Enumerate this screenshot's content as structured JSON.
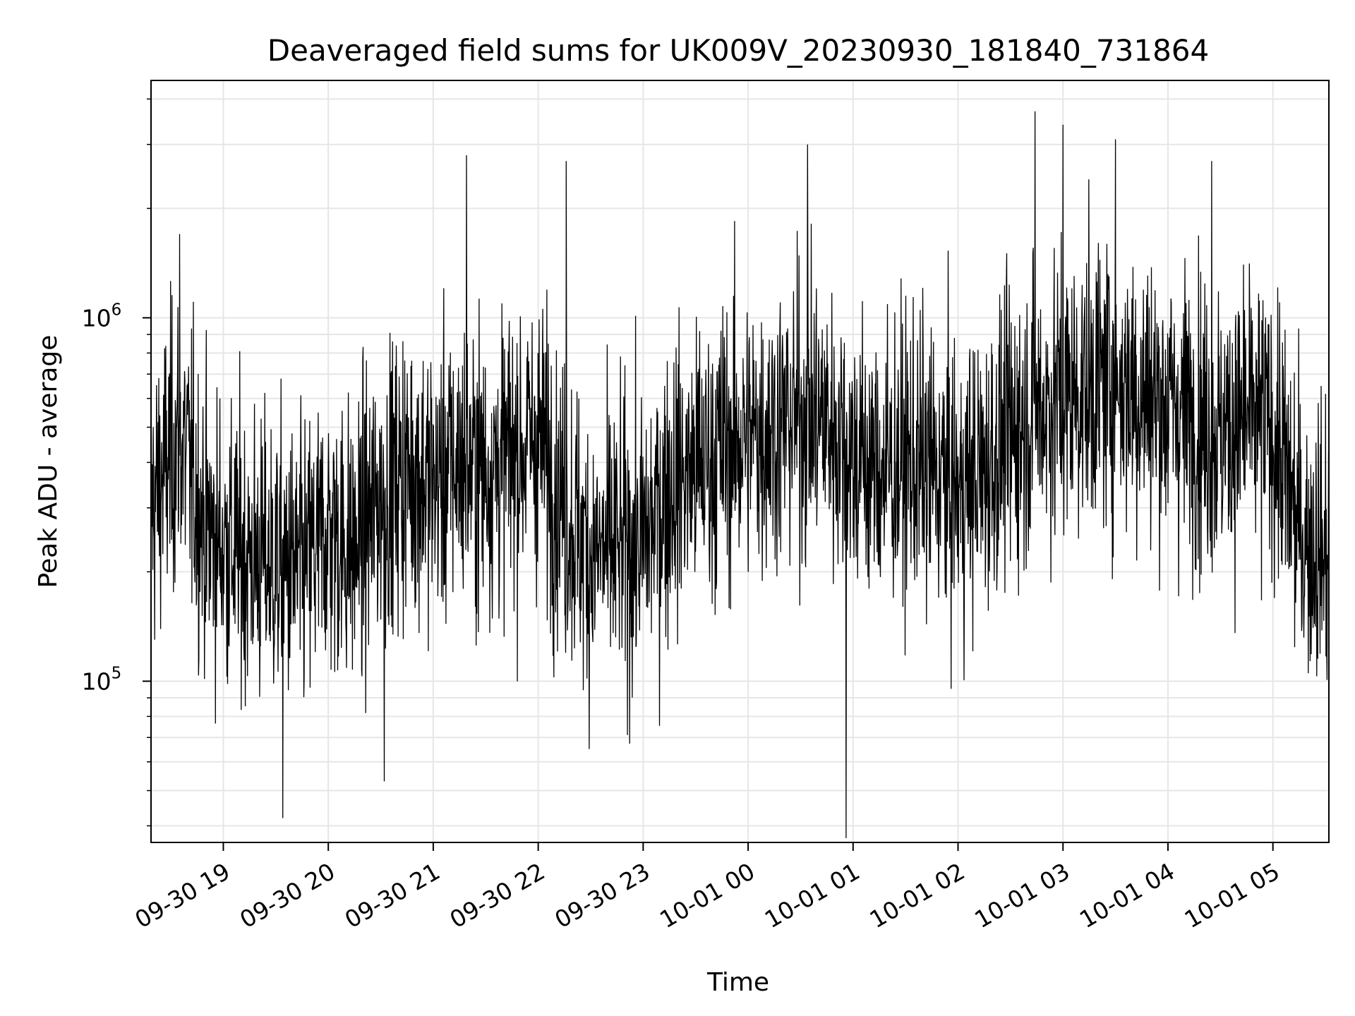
{
  "chart_data": {
    "type": "line",
    "title": "Deaveraged field sums for UK009V_20230930_181840_731864",
    "xlabel": "Time",
    "ylabel": "Peak ADU - average",
    "yscale": "log",
    "ylim": [
      36000,
      4500000
    ],
    "xlim": [
      "2023-09-30 18:18:40",
      "2023-10-01 05:32:00"
    ],
    "x_ticks": [
      {
        "value": "2023-09-30 19:00",
        "label": "09-30 19"
      },
      {
        "value": "2023-09-30 20:00",
        "label": "09-30 20"
      },
      {
        "value": "2023-09-30 21:00",
        "label": "09-30 21"
      },
      {
        "value": "2023-09-30 22:00",
        "label": "09-30 22"
      },
      {
        "value": "2023-09-30 23:00",
        "label": "09-30 23"
      },
      {
        "value": "2023-10-01 00:00",
        "label": "10-01 00"
      },
      {
        "value": "2023-10-01 01:00",
        "label": "10-01 01"
      },
      {
        "value": "2023-10-01 02:00",
        "label": "10-01 02"
      },
      {
        "value": "2023-10-01 03:00",
        "label": "10-01 03"
      },
      {
        "value": "2023-10-01 04:00",
        "label": "10-01 04"
      },
      {
        "value": "2023-10-01 05:00",
        "label": "10-01 05"
      }
    ],
    "y_ticks": [
      {
        "value": 100000,
        "base": "10",
        "exp": "5"
      },
      {
        "value": 1000000,
        "base": "10",
        "exp": "6"
      }
    ],
    "grid": true,
    "line_color": "#000000",
    "grid_color": "#e6e6e6",
    "series": [
      {
        "x": [
          "2023-09-30 18:18:40",
          "2023-09-30 18:35",
          "2023-09-30 18:50",
          "2023-09-30 19:00",
          "2023-09-30 19:15",
          "2023-09-30 19:30",
          "2023-09-30 19:45",
          "2023-09-30 20:00",
          "2023-09-30 20:15",
          "2023-09-30 20:30",
          "2023-09-30 20:45",
          "2023-09-30 21:00",
          "2023-09-30 21:15",
          "2023-09-30 21:30",
          "2023-09-30 21:45",
          "2023-09-30 22:00",
          "2023-09-30 22:15",
          "2023-09-30 22:30",
          "2023-09-30 22:45",
          "2023-09-30 23:00",
          "2023-09-30 23:15",
          "2023-09-30 23:30",
          "2023-09-30 23:45",
          "2023-10-01 00:00",
          "2023-10-01 00:15",
          "2023-10-01 00:30",
          "2023-10-01 00:45",
          "2023-10-01 01:00",
          "2023-10-01 01:15",
          "2023-10-01 01:30",
          "2023-10-01 01:45",
          "2023-10-01 02:00",
          "2023-10-01 02:15",
          "2023-10-01 02:30",
          "2023-10-01 02:45",
          "2023-10-01 03:00",
          "2023-10-01 03:15",
          "2023-10-01 03:30",
          "2023-10-01 03:45",
          "2023-10-01 04:00",
          "2023-10-01 04:15",
          "2023-10-01 04:30",
          "2023-10-01 04:45",
          "2023-10-01 05:00",
          "2023-10-01 05:15",
          "2023-10-01 05:32"
        ],
        "y": [
          300000,
          480000,
          260000,
          240000,
          220000,
          210000,
          200000,
          260000,
          230000,
          320000,
          380000,
          350000,
          400000,
          380000,
          420000,
          470000,
          300000,
          220000,
          230000,
          240000,
          350000,
          380000,
          440000,
          470000,
          500000,
          540000,
          520000,
          420000,
          380000,
          400000,
          380000,
          330000,
          380000,
          480000,
          560000,
          600000,
          650000,
          680000,
          620000,
          580000,
          540000,
          480000,
          520000,
          500000,
          260000,
          220000
        ]
      }
    ],
    "extremes": [
      {
        "x": "2023-09-30 18:35",
        "y": 1700000
      },
      {
        "x": "2023-09-30 19:34",
        "y": 42000
      },
      {
        "x": "2023-09-30 20:32",
        "y": 53000
      },
      {
        "x": "2023-09-30 21:19",
        "y": 2800000
      },
      {
        "x": "2023-09-30 22:16",
        "y": 2700000
      },
      {
        "x": "2023-10-01 00:34",
        "y": 3000000
      },
      {
        "x": "2023-10-01 00:56",
        "y": 37000
      },
      {
        "x": "2023-10-01 02:44",
        "y": 3700000
      },
      {
        "x": "2023-10-01 03:00",
        "y": 3400000
      },
      {
        "x": "2023-10-01 03:30",
        "y": 3100000
      },
      {
        "x": "2023-10-01 04:25",
        "y": 2700000
      }
    ]
  }
}
